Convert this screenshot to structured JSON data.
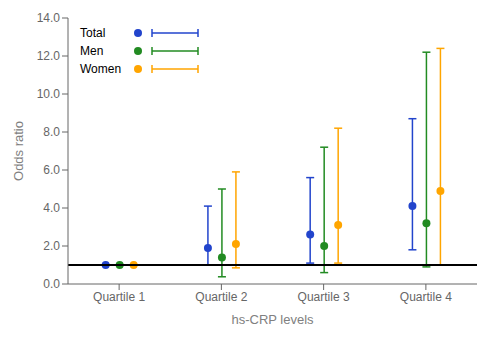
{
  "chart_data": {
    "type": "errorbar",
    "xlabel": "hs-CRP levels",
    "ylabel": "Odds ratio",
    "categories": [
      "Quartile 1",
      "Quartile 2",
      "Quartile 3",
      "Quartile 4"
    ],
    "series": [
      {
        "name": "Total",
        "color": "#2244cc",
        "values": [
          1.0,
          1.9,
          2.6,
          4.1
        ],
        "ci_low": [
          1.0,
          1.0,
          1.1,
          1.8
        ],
        "ci_high": [
          1.0,
          4.1,
          5.6,
          8.7
        ]
      },
      {
        "name": "Men",
        "color": "#228B22",
        "values": [
          1.0,
          1.4,
          2.0,
          3.2
        ],
        "ci_low": [
          1.0,
          0.38,
          0.6,
          0.9
        ],
        "ci_high": [
          1.0,
          5.0,
          7.2,
          12.2
        ]
      },
      {
        "name": "Women",
        "color": "#FFA500",
        "values": [
          1.0,
          2.1,
          3.1,
          4.9
        ],
        "ci_low": [
          1.0,
          0.85,
          1.1,
          1.0
        ],
        "ci_high": [
          1.0,
          5.9,
          8.2,
          12.4
        ]
      }
    ],
    "ylim": [
      0.0,
      14.0
    ],
    "yticks": [
      {
        "value": 0,
        "label": "0.0"
      },
      {
        "value": 2,
        "label": "2.0"
      },
      {
        "value": 4,
        "label": "4.0"
      },
      {
        "value": 6,
        "label": "6.0"
      },
      {
        "value": 8,
        "label": "8.0"
      },
      {
        "value": 10,
        "label": "10.0"
      },
      {
        "value": 12,
        "label": "12.0"
      },
      {
        "value": 14,
        "label": "14.0"
      }
    ],
    "reference_line": 1.0,
    "legend": "upper left",
    "grid": false
  }
}
